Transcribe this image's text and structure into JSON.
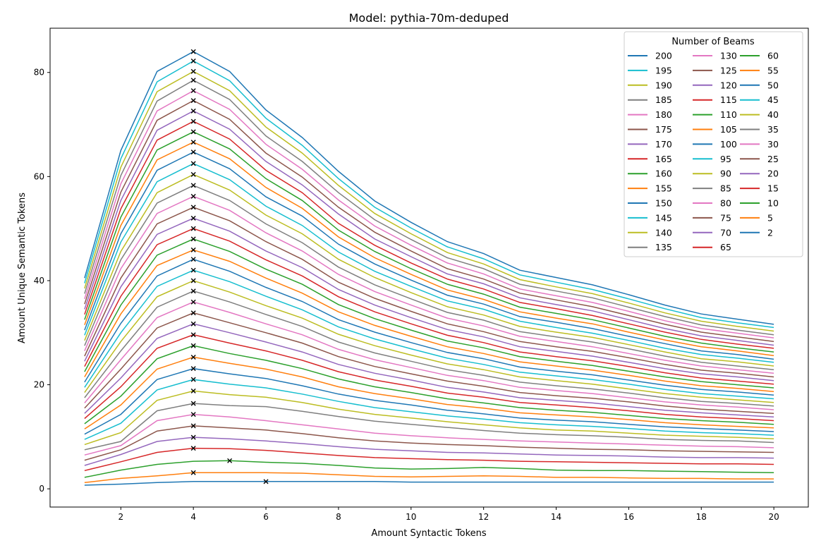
{
  "chart_data": {
    "type": "line",
    "title": "Model: pythia-70m-deduped",
    "xlabel": "Amount Syntactic Tokens",
    "ylabel": "Amount Unique Semantic Tokens",
    "xlim": [
      0.05,
      20.95
    ],
    "ylim": [
      -3.5,
      88.5
    ],
    "xticks": [
      2,
      4,
      6,
      8,
      10,
      12,
      14,
      16,
      18,
      20
    ],
    "yticks": [
      0,
      20,
      40,
      60,
      80
    ],
    "legend": {
      "title": "Number of Beams",
      "placement": "top-right",
      "columns": 3
    },
    "x": [
      1,
      2,
      3,
      4,
      5,
      6,
      7,
      8,
      9,
      10,
      11,
      12,
      13,
      14,
      15,
      16,
      17,
      18,
      19,
      20
    ],
    "marker_note": "x markers at each series maximum",
    "series": [
      {
        "name": "200",
        "color": "#1f77b4",
        "values": [
          40.5,
          65.0,
          80.2,
          84.0,
          80.2,
          72.8,
          67.5,
          61.0,
          55.3,
          51.2,
          47.5,
          45.2,
          42.0,
          40.6,
          39.2,
          37.3,
          35.3,
          33.6,
          32.6,
          31.6
        ],
        "max_x": 4
      },
      {
        "name": "195",
        "color": "#17becf",
        "values": [
          39.5,
          63.4,
          78.2,
          82.2,
          78.4,
          71.2,
          66.0,
          59.6,
          54.1,
          50.1,
          46.5,
          44.2,
          41.1,
          39.7,
          38.3,
          36.5,
          34.6,
          32.9,
          31.9,
          31.0
        ],
        "max_x": 4
      },
      {
        "name": "190",
        "color": "#bcbd22",
        "values": [
          38.5,
          61.8,
          76.3,
          80.2,
          76.5,
          69.5,
          64.5,
          58.3,
          52.9,
          49.0,
          45.4,
          43.2,
          40.2,
          38.8,
          37.5,
          35.7,
          33.8,
          32.2,
          31.2,
          30.3
        ],
        "max_x": 4
      },
      {
        "name": "185",
        "color": "#7f7f7f",
        "values": [
          37.5,
          60.2,
          74.5,
          78.5,
          74.8,
          67.8,
          62.9,
          56.9,
          51.7,
          47.9,
          44.4,
          42.3,
          39.3,
          38.0,
          36.7,
          34.9,
          33.1,
          31.5,
          30.5,
          29.6
        ],
        "max_x": 4
      },
      {
        "name": "180",
        "color": "#e377c2",
        "values": [
          36.5,
          58.6,
          72.6,
          76.5,
          72.9,
          66.2,
          61.4,
          55.5,
          50.5,
          46.8,
          43.4,
          41.3,
          38.4,
          37.1,
          35.8,
          34.1,
          32.3,
          30.8,
          29.9,
          29.0
        ],
        "max_x": 4
      },
      {
        "name": "175",
        "color": "#8c564b",
        "values": [
          35.5,
          57.0,
          70.8,
          74.6,
          71.0,
          64.5,
          59.9,
          54.1,
          49.3,
          45.7,
          42.3,
          40.3,
          37.6,
          36.3,
          35.0,
          33.3,
          31.6,
          30.1,
          29.2,
          28.3
        ],
        "max_x": 4
      },
      {
        "name": "170",
        "color": "#9467bd",
        "values": [
          34.5,
          55.4,
          68.9,
          72.6,
          69.1,
          62.9,
          58.4,
          52.8,
          48.0,
          44.6,
          41.3,
          39.4,
          36.7,
          35.4,
          34.2,
          32.5,
          30.8,
          29.4,
          28.5,
          27.6
        ],
        "max_x": 4
      },
      {
        "name": "165",
        "color": "#d62728",
        "values": [
          33.5,
          53.8,
          67.0,
          70.6,
          67.2,
          61.2,
          56.9,
          51.0,
          46.8,
          43.4,
          40.3,
          38.4,
          35.8,
          34.6,
          33.3,
          31.7,
          30.1,
          28.7,
          27.8,
          27.0
        ],
        "max_x": 4
      },
      {
        "name": "160",
        "color": "#2ca02c",
        "values": [
          32.5,
          52.2,
          65.1,
          68.6,
          65.3,
          59.6,
          55.4,
          49.7,
          45.6,
          42.3,
          39.3,
          37.4,
          34.9,
          33.7,
          32.5,
          30.9,
          29.3,
          28.0,
          27.1,
          26.3
        ],
        "max_x": 4
      },
      {
        "name": "155",
        "color": "#ff7f0e",
        "values": [
          31.5,
          50.6,
          63.2,
          66.6,
          63.4,
          57.9,
          53.9,
          48.4,
          44.4,
          41.2,
          38.2,
          36.4,
          34.0,
          32.8,
          31.7,
          30.1,
          28.6,
          27.3,
          26.5,
          25.6
        ],
        "max_x": 4
      },
      {
        "name": "150",
        "color": "#1f77b4",
        "values": [
          30.5,
          49.0,
          61.2,
          64.7,
          61.5,
          56.1,
          52.4,
          47.0,
          43.2,
          40.1,
          37.2,
          35.5,
          33.1,
          32.0,
          30.8,
          29.3,
          27.9,
          26.5,
          25.8,
          24.9
        ],
        "max_x": 4
      },
      {
        "name": "145",
        "color": "#17becf",
        "values": [
          29.5,
          47.4,
          59.0,
          62.5,
          59.4,
          54.3,
          50.6,
          45.5,
          41.8,
          38.9,
          36.1,
          34.5,
          32.2,
          31.0,
          29.9,
          28.5,
          27.0,
          25.8,
          25.1,
          24.3
        ],
        "max_x": 4
      },
      {
        "name": "140",
        "color": "#bcbd22",
        "values": [
          28.5,
          45.6,
          56.9,
          60.4,
          57.4,
          52.6,
          49.0,
          44.1,
          40.6,
          37.7,
          35.0,
          33.4,
          31.2,
          30.1,
          29.1,
          27.7,
          26.3,
          25.0,
          24.4,
          23.6
        ],
        "max_x": 4
      },
      {
        "name": "135",
        "color": "#7f7f7f",
        "values": [
          27.5,
          44.0,
          54.9,
          58.3,
          55.4,
          50.9,
          47.3,
          42.6,
          39.2,
          36.5,
          33.9,
          32.4,
          30.2,
          29.2,
          28.2,
          26.9,
          25.5,
          24.3,
          23.6,
          22.9
        ],
        "max_x": 4
      },
      {
        "name": "130",
        "color": "#e377c2",
        "values": [
          26.5,
          42.3,
          52.9,
          56.2,
          53.5,
          49.2,
          45.7,
          41.2,
          37.9,
          35.3,
          32.8,
          31.3,
          29.3,
          28.3,
          27.3,
          26.0,
          24.7,
          23.6,
          22.9,
          22.2
        ],
        "max_x": 4
      },
      {
        "name": "125",
        "color": "#8c564b",
        "values": [
          25.5,
          40.5,
          50.9,
          54.1,
          51.5,
          47.5,
          44.1,
          39.7,
          36.6,
          34.1,
          31.7,
          30.2,
          28.3,
          27.3,
          26.4,
          25.2,
          23.9,
          22.8,
          22.2,
          21.5
        ],
        "max_x": 4
      },
      {
        "name": "120",
        "color": "#9467bd",
        "values": [
          24.5,
          38.8,
          48.9,
          52.0,
          49.5,
          45.7,
          42.5,
          38.3,
          35.3,
          32.9,
          30.6,
          29.2,
          27.3,
          26.4,
          25.5,
          24.3,
          23.1,
          22.1,
          21.5,
          20.8
        ],
        "max_x": 4
      },
      {
        "name": "115",
        "color": "#d62728",
        "values": [
          23.5,
          37.0,
          46.9,
          50.0,
          47.6,
          44.0,
          40.9,
          36.9,
          34.0,
          31.7,
          29.5,
          28.1,
          26.3,
          25.4,
          24.6,
          23.5,
          22.3,
          21.3,
          20.7,
          20.1
        ],
        "max_x": 4
      },
      {
        "name": "110",
        "color": "#2ca02c",
        "values": [
          22.5,
          35.3,
          44.9,
          48.0,
          45.6,
          42.2,
          39.3,
          35.4,
          32.7,
          30.5,
          28.4,
          27.1,
          25.4,
          24.5,
          23.7,
          22.6,
          21.5,
          20.6,
          20.0,
          19.4
        ],
        "max_x": 4
      },
      {
        "name": "105",
        "color": "#ff7f0e",
        "values": [
          21.5,
          33.6,
          42.9,
          45.9,
          43.7,
          40.5,
          37.6,
          34.0,
          31.4,
          29.3,
          27.3,
          26.0,
          24.4,
          23.6,
          22.8,
          21.8,
          20.7,
          19.8,
          19.3,
          18.7
        ],
        "max_x": 4
      },
      {
        "name": "100",
        "color": "#1f77b4",
        "values": [
          20.5,
          31.8,
          40.9,
          44.1,
          41.8,
          38.7,
          36.0,
          32.5,
          30.1,
          28.1,
          26.2,
          25.0,
          23.4,
          22.6,
          21.9,
          20.9,
          19.9,
          19.1,
          18.6,
          18.0
        ],
        "max_x": 4
      },
      {
        "name": "95",
        "color": "#17becf",
        "values": [
          19.5,
          30.0,
          38.9,
          42.0,
          39.8,
          37.0,
          34.4,
          31.1,
          28.8,
          26.9,
          25.1,
          23.9,
          22.4,
          21.7,
          21.0,
          20.1,
          19.1,
          18.3,
          17.8,
          17.3
        ],
        "max_x": 4
      },
      {
        "name": "90",
        "color": "#bcbd22",
        "values": [
          18.5,
          28.3,
          36.9,
          40.0,
          37.8,
          35.2,
          32.8,
          29.7,
          27.5,
          25.7,
          24.0,
          22.9,
          21.5,
          20.8,
          20.1,
          19.2,
          18.3,
          17.6,
          17.1,
          16.6
        ],
        "max_x": 4
      },
      {
        "name": "85",
        "color": "#7f7f7f",
        "values": [
          17.5,
          26.5,
          34.9,
          38.0,
          35.9,
          33.5,
          31.2,
          28.2,
          26.1,
          24.5,
          22.9,
          21.8,
          20.5,
          19.8,
          19.2,
          18.4,
          17.5,
          16.8,
          16.4,
          15.9
        ],
        "max_x": 4
      },
      {
        "name": "80",
        "color": "#e377c2",
        "values": [
          16.5,
          24.8,
          32.9,
          35.9,
          33.9,
          31.7,
          29.6,
          26.8,
          24.8,
          23.3,
          21.8,
          20.8,
          19.5,
          18.9,
          18.3,
          17.5,
          16.7,
          16.1,
          15.7,
          15.2
        ],
        "max_x": 4
      },
      {
        "name": "75",
        "color": "#8c564b",
        "values": [
          15.5,
          23.0,
          30.9,
          33.8,
          31.9,
          30.0,
          28.0,
          25.4,
          23.5,
          22.1,
          20.7,
          19.7,
          18.5,
          17.9,
          17.4,
          16.7,
          15.9,
          15.3,
          14.9,
          14.5
        ],
        "max_x": 4
      },
      {
        "name": "70",
        "color": "#9467bd",
        "values": [
          14.5,
          21.3,
          28.9,
          31.7,
          30.0,
          28.2,
          26.3,
          23.9,
          22.2,
          20.9,
          19.5,
          18.6,
          17.5,
          17.0,
          16.5,
          15.8,
          15.1,
          14.6,
          14.2,
          13.8
        ],
        "max_x": 4
      },
      {
        "name": "65",
        "color": "#d62728",
        "values": [
          13.5,
          19.6,
          27.0,
          29.6,
          28.0,
          26.5,
          24.7,
          22.5,
          20.9,
          19.7,
          18.4,
          17.6,
          16.6,
          16.1,
          15.6,
          15.0,
          14.3,
          13.8,
          13.5,
          13.1
        ],
        "max_x": 4
      },
      {
        "name": "60",
        "color": "#2ca02c",
        "values": [
          12.5,
          17.8,
          25.0,
          27.5,
          26.0,
          24.7,
          23.1,
          21.1,
          19.6,
          18.5,
          17.3,
          16.5,
          15.6,
          15.1,
          14.7,
          14.1,
          13.5,
          13.1,
          12.8,
          12.4
        ],
        "max_x": 4
      },
      {
        "name": "55",
        "color": "#ff7f0e",
        "values": [
          11.5,
          16.1,
          23.0,
          25.3,
          24.1,
          23.0,
          21.5,
          19.6,
          18.3,
          17.3,
          16.2,
          15.5,
          14.6,
          14.2,
          13.8,
          13.3,
          12.7,
          12.3,
          12.0,
          11.7
        ],
        "max_x": 4
      },
      {
        "name": "50",
        "color": "#1f77b4",
        "values": [
          10.5,
          14.3,
          21.0,
          23.1,
          22.1,
          21.2,
          19.8,
          18.2,
          17.0,
          16.1,
          15.1,
          14.4,
          13.6,
          13.2,
          12.9,
          12.4,
          11.9,
          11.6,
          11.3,
          11.0
        ],
        "max_x": 4
      },
      {
        "name": "45",
        "color": "#17becf",
        "values": [
          9.5,
          12.6,
          19.0,
          21.0,
          20.1,
          19.4,
          18.2,
          16.8,
          15.6,
          14.8,
          14.0,
          13.4,
          12.7,
          12.3,
          12.0,
          11.6,
          11.1,
          10.8,
          10.6,
          10.3
        ],
        "max_x": 4
      },
      {
        "name": "40",
        "color": "#bcbd22",
        "values": [
          8.5,
          10.8,
          17.0,
          18.8,
          18.1,
          17.6,
          16.6,
          15.3,
          14.3,
          13.6,
          12.9,
          12.3,
          11.7,
          11.3,
          11.1,
          10.7,
          10.3,
          10.1,
          9.9,
          9.6
        ],
        "max_x": 4
      },
      {
        "name": "35",
        "color": "#7f7f7f",
        "values": [
          7.5,
          9.1,
          15.0,
          16.4,
          16.0,
          15.8,
          14.9,
          13.9,
          13.0,
          12.4,
          11.8,
          11.2,
          10.7,
          10.4,
          10.2,
          9.9,
          9.5,
          9.3,
          9.2,
          8.9
        ],
        "max_x": 4
      },
      {
        "name": "30",
        "color": "#e377c2",
        "values": [
          6.5,
          8.3,
          13.1,
          14.3,
          13.8,
          13.1,
          12.3,
          11.5,
          10.7,
          10.2,
          9.8,
          9.5,
          9.2,
          9.0,
          8.8,
          8.6,
          8.4,
          8.2,
          8.1,
          7.9
        ],
        "max_x": 4
      },
      {
        "name": "25",
        "color": "#8c564b",
        "values": [
          5.5,
          7.5,
          11.1,
          12.1,
          11.7,
          11.3,
          10.6,
          9.8,
          9.2,
          8.8,
          8.5,
          8.3,
          8.0,
          7.8,
          7.6,
          7.5,
          7.3,
          7.2,
          7.1,
          7.0
        ],
        "max_x": 4
      },
      {
        "name": "20",
        "color": "#9467bd",
        "values": [
          4.5,
          6.6,
          9.1,
          9.9,
          9.6,
          9.2,
          8.7,
          8.1,
          7.6,
          7.3,
          7.0,
          6.9,
          6.7,
          6.5,
          6.4,
          6.3,
          6.1,
          6.0,
          6.0,
          5.9
        ],
        "max_x": 4
      },
      {
        "name": "15",
        "color": "#d62728",
        "values": [
          3.5,
          5.2,
          7.0,
          7.8,
          7.7,
          7.4,
          6.9,
          6.4,
          6.0,
          5.8,
          5.6,
          5.5,
          5.3,
          5.2,
          5.1,
          5.0,
          4.9,
          4.8,
          4.8,
          4.7
        ],
        "max_x": 4
      },
      {
        "name": "10",
        "color": "#2ca02c",
        "values": [
          2.2,
          3.6,
          4.7,
          5.3,
          5.4,
          5.1,
          4.9,
          4.5,
          4.0,
          3.8,
          3.9,
          4.1,
          3.9,
          3.6,
          3.5,
          3.5,
          3.4,
          3.3,
          3.2,
          3.1
        ],
        "max_x": 5
      },
      {
        "name": "5",
        "color": "#ff7f0e",
        "values": [
          1.2,
          2.0,
          2.5,
          3.1,
          3.1,
          3.1,
          3.0,
          2.7,
          2.4,
          2.3,
          2.4,
          2.5,
          2.4,
          2.2,
          2.2,
          2.1,
          2.0,
          2.0,
          1.9,
          1.9
        ],
        "max_x": 4
      },
      {
        "name": "2",
        "color": "#1f77b4",
        "values": [
          0.7,
          0.9,
          1.2,
          1.4,
          1.4,
          1.4,
          1.4,
          1.4,
          1.4,
          1.3,
          1.3,
          1.3,
          1.3,
          1.3,
          1.3,
          1.3,
          1.3,
          1.3,
          1.3,
          1.3
        ],
        "max_x": 6
      }
    ]
  }
}
